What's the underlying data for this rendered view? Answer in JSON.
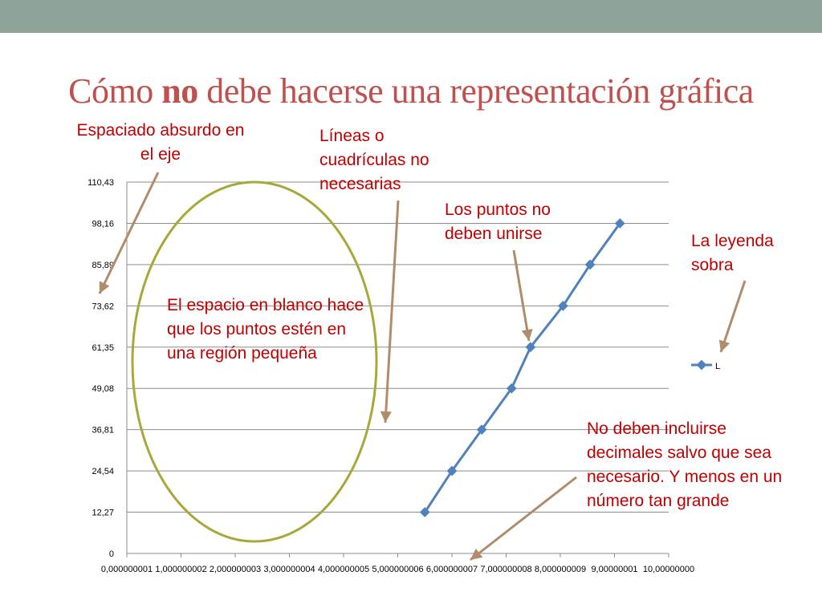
{
  "slide": {
    "title_pre": "Cómo ",
    "title_bold": "no",
    "title_post": " debe hacerse una representación gráfica"
  },
  "annotations": {
    "axis_spacing": "Espaciado absurdo en el eje",
    "gridlines": "Líneas o cuadrículas no necesarias",
    "points_joined": "Los puntos no deben unirse",
    "legend": "La leyenda sobra",
    "whitespace": "El espacio en blanco hace que los puntos estén en una región pequeña",
    "decimals": "No deben incluirse decimales salvo que sea necesario. Y menos en un número tan grande"
  },
  "colors": {
    "title": "#c0504d",
    "annotation_text": "#c00000",
    "arrow": "#b08c6a",
    "ellipse": "#a8a83a",
    "series_line": "#4f81bd",
    "grid": "#8c8c8c",
    "topbar": "#8fa398"
  },
  "chart_data": {
    "type": "line",
    "title": "",
    "xlabel": "",
    "ylabel": "",
    "grid": true,
    "legend": "right",
    "xlim": [
      0,
      10
    ],
    "ylim": [
      0,
      110.43
    ],
    "x_tick_labels": [
      "0,000000001",
      "1,000000002",
      "2,000000003",
      "3,000000004",
      "4,000000005",
      "5,000000006",
      "6,000000007",
      "7,000000008",
      "8,000000009",
      "9,00000001",
      "10,00000000"
    ],
    "y_tick_labels": [
      "0",
      "12,27",
      "24,54",
      "36,81",
      "49,08",
      "61,35",
      "73,62",
      "85,89",
      "98,16",
      "110,43"
    ],
    "series": [
      {
        "name": "L",
        "x": [
          5.5,
          6.0,
          6.55,
          7.1,
          7.45,
          8.05,
          8.55,
          9.1
        ],
        "y": [
          12.27,
          24.54,
          36.81,
          49.08,
          61.35,
          73.62,
          85.89,
          98.16
        ]
      }
    ]
  }
}
